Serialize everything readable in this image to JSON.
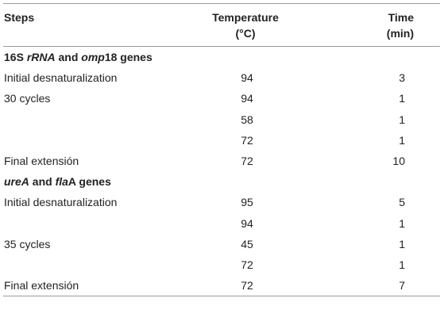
{
  "table": {
    "headers": {
      "steps": "Steps",
      "temperature_line1": "Temperature",
      "temperature_line2": "(°C)",
      "time_line1": "Time",
      "time_line2": "(min)"
    },
    "section1": {
      "part1": "16S ",
      "part2": "rRNA",
      "part3": " and ",
      "part4": "omp",
      "part5": "18 genes"
    },
    "section1_rows": [
      {
        "step": "Initial desnaturalization",
        "temp": "94",
        "time": "3"
      },
      {
        "step": "30 cycles",
        "temp": "94",
        "time": "1"
      },
      {
        "step": "",
        "temp": "58",
        "time": "1"
      },
      {
        "step": "",
        "temp": "72",
        "time": "1"
      },
      {
        "step": "Final extensión",
        "temp": "72",
        "time": "10"
      }
    ],
    "section2": {
      "part1": "ureA",
      "part2": " and ",
      "part3": "fla",
      "part4": "A genes"
    },
    "section2_rows": [
      {
        "step": "Initial desnaturalization",
        "temp": "95",
        "time": "5"
      },
      {
        "step": "",
        "temp": "94",
        "time": "1"
      },
      {
        "step": "35 cycles",
        "temp": "45",
        "time": "1"
      },
      {
        "step": "",
        "temp": "72",
        "time": "1"
      },
      {
        "step": "Final extensión",
        "temp": "72",
        "time": "7"
      }
    ]
  }
}
